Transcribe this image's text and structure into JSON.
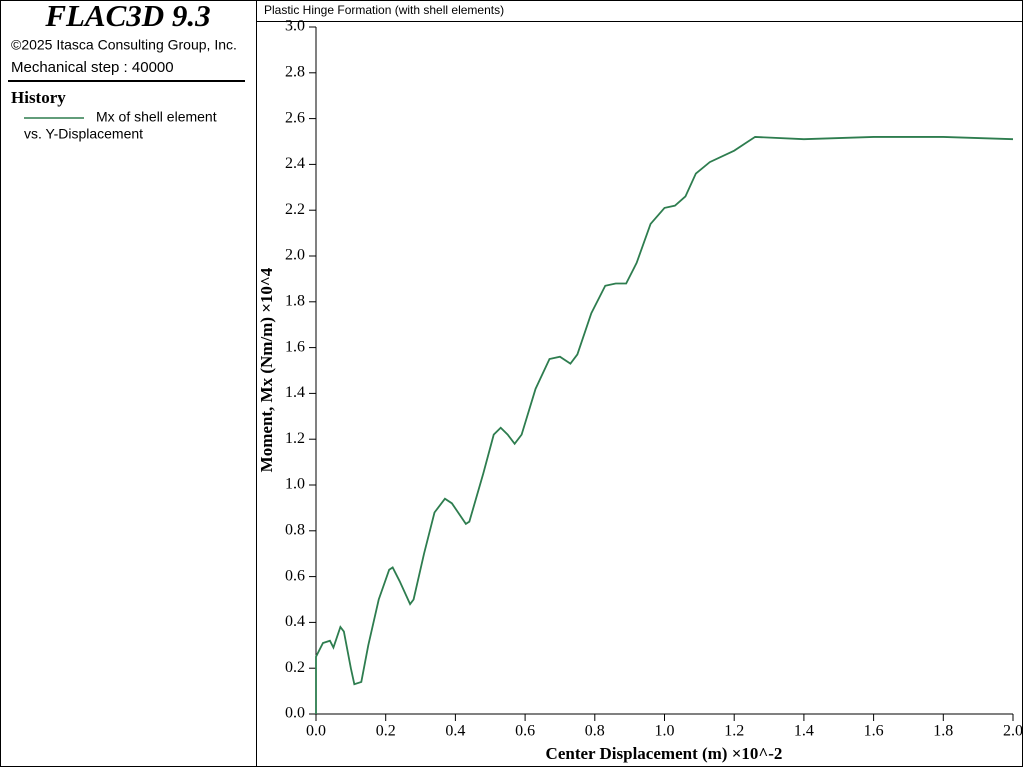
{
  "panel": {
    "app_title": "FLAC3D 9.3",
    "copyright": "©2025 Itasca Consulting Group, Inc.",
    "step": "Mechanical step : 40000",
    "section": "History",
    "legend_subtitle": "vs. Y-Displacement"
  },
  "chart_data": {
    "type": "line",
    "title": "Plastic Hinge Formation (with shell elements)",
    "x_label": "Center Displacement (m) ×10^-2",
    "y_label": "Moment, Mx (Nm/m) ×10^4",
    "xlim": [
      0,
      2
    ],
    "ylim": [
      0,
      3
    ],
    "xticks": [
      {
        "value": 0,
        "label": "0.0"
      },
      {
        "value": 0.2,
        "label": "0.2"
      },
      {
        "value": 0.4,
        "label": "0.4"
      },
      {
        "value": 0.6,
        "label": "0.6"
      },
      {
        "value": 0.8,
        "label": "0.8"
      },
      {
        "value": 1,
        "label": "1.0"
      },
      {
        "value": 1.2,
        "label": "1.2"
      },
      {
        "value": 1.4,
        "label": "1.4"
      },
      {
        "value": 1.6,
        "label": "1.6"
      },
      {
        "value": 1.8,
        "label": "1.8"
      },
      {
        "value": 2,
        "label": "2.0"
      }
    ],
    "yticks": [
      {
        "value": 0,
        "label": "0.0"
      },
      {
        "value": 0.2,
        "label": "0.2"
      },
      {
        "value": 0.4,
        "label": "0.4"
      },
      {
        "value": 0.6,
        "label": "0.6"
      },
      {
        "value": 0.8,
        "label": "0.8"
      },
      {
        "value": 1,
        "label": "1.0"
      },
      {
        "value": 1.2,
        "label": "1.2"
      },
      {
        "value": 1.4,
        "label": "1.4"
      },
      {
        "value": 1.6,
        "label": "1.6"
      },
      {
        "value": 1.8,
        "label": "1.8"
      },
      {
        "value": 2,
        "label": "2.0"
      },
      {
        "value": 2.2,
        "label": "2.2"
      },
      {
        "value": 2.4,
        "label": "2.4"
      },
      {
        "value": 2.6,
        "label": "2.6"
      },
      {
        "value": 2.8,
        "label": "2.8"
      },
      {
        "value": 3,
        "label": "3.0"
      }
    ],
    "x": [
      0,
      0,
      0.02,
      0.04,
      0.05,
      0.07,
      0.08,
      0.1,
      0.11,
      0.13,
      0.15,
      0.18,
      0.21,
      0.22,
      0.24,
      0.27,
      0.28,
      0.31,
      0.34,
      0.37,
      0.39,
      0.43,
      0.44,
      0.48,
      0.51,
      0.53,
      0.55,
      0.57,
      0.59,
      0.63,
      0.67,
      0.7,
      0.73,
      0.75,
      0.79,
      0.83,
      0.86,
      0.89,
      0.92,
      0.96,
      1.0,
      1.03,
      1.06,
      1.09,
      1.13,
      1.2,
      1.23,
      1.26,
      1.4,
      1.6,
      1.8,
      2.0
    ],
    "series": [
      {
        "name": "Mx of shell element",
        "color": "#2e7d4f",
        "values": [
          0,
          0.25,
          0.31,
          0.32,
          0.29,
          0.38,
          0.36,
          0.2,
          0.13,
          0.14,
          0.3,
          0.5,
          0.63,
          0.64,
          0.58,
          0.48,
          0.5,
          0.7,
          0.88,
          0.94,
          0.92,
          0.83,
          0.84,
          1.05,
          1.22,
          1.25,
          1.22,
          1.18,
          1.22,
          1.42,
          1.55,
          1.56,
          1.53,
          1.57,
          1.75,
          1.87,
          1.88,
          1.88,
          1.97,
          2.14,
          2.21,
          2.22,
          2.26,
          2.36,
          2.41,
          2.46,
          2.49,
          2.52,
          2.51,
          2.52,
          2.52,
          2.51
        ]
      }
    ]
  }
}
